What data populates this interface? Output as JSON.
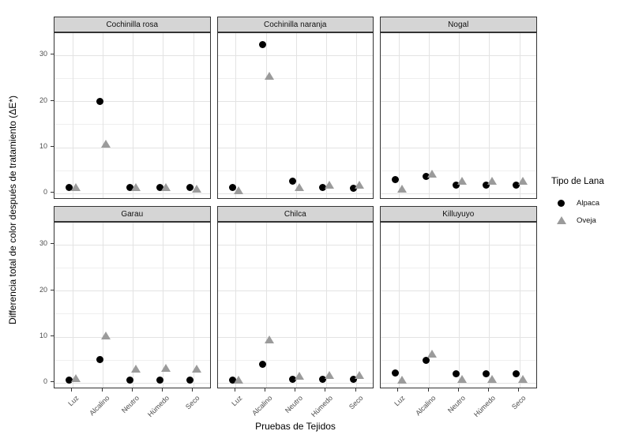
{
  "figure": {
    "y_axis_title": "Differencia total de color después de tratamiento (ΔE*)",
    "x_axis_title": "Pruebas de Tejidos",
    "legend": {
      "title": "Tipo de Lana",
      "items": [
        {
          "label": "Alpaca",
          "shape": "circle",
          "color": "#000000"
        },
        {
          "label": "Oveja",
          "shape": "triangle",
          "color": "#9b9b9b"
        }
      ]
    },
    "colors": {
      "background": "#ffffff",
      "strip_fill": "#d5d5d5",
      "panel_border": "#333333",
      "grid_major": "#e3e3e3",
      "grid_minor": "#efefef",
      "tick_text": "#4d4d4d",
      "title_text": "#000000",
      "alpaca_point": "#000000",
      "oveja_point": "#9b9b9b"
    }
  },
  "chart_data": {
    "type": "scatter",
    "facet_layout": {
      "rows": 2,
      "cols": 3
    },
    "facet_titles": [
      "Cochinilla rosa",
      "Cochinilla naranja",
      "Nogal",
      "Garau",
      "Chilca",
      "Killuyuyo"
    ],
    "categories": [
      "Luz",
      "Alcalino",
      "Neutro",
      "Húmedo",
      "Seco"
    ],
    "xlabel": "Pruebas de Tejidos",
    "ylabel": "Differencia total de color después de tratamiento (ΔE*)",
    "y_ticks": [
      0,
      10,
      20,
      30
    ],
    "y_minor_gridlines": [
      5,
      15,
      25
    ],
    "ylim": [
      -1.4,
      34.8
    ],
    "grid": true,
    "legend_position": "right",
    "legend_title": "Tipo de Lana",
    "series_names": [
      "Alpaca",
      "Oveja"
    ],
    "facets": [
      {
        "title": "Cochinilla rosa",
        "series": [
          {
            "name": "Alpaca",
            "values": [
              1.3,
              19.9,
              1.3,
              1.3,
              1.2
            ]
          },
          {
            "name": "Oveja",
            "values": [
              1.3,
              10.7,
              1.2,
              1.2,
              1.0
            ]
          }
        ]
      },
      {
        "title": "Cochinilla naranja",
        "series": [
          {
            "name": "Alpaca",
            "values": [
              1.2,
              32.3,
              2.7,
              1.2,
              1.1
            ]
          },
          {
            "name": "Oveja",
            "values": [
              0.5,
              25.5,
              1.3,
              1.8,
              1.8
            ]
          }
        ]
      },
      {
        "title": "Nogal",
        "series": [
          {
            "name": "Alpaca",
            "values": [
              2.9,
              3.7,
              1.8,
              1.8,
              1.8
            ]
          },
          {
            "name": "Oveja",
            "values": [
              0.9,
              4.1,
              2.6,
              2.7,
              2.6
            ]
          }
        ]
      },
      {
        "title": "Garau",
        "series": [
          {
            "name": "Alpaca",
            "values": [
              0.6,
              5.0,
              0.5,
              0.5,
              0.5
            ]
          },
          {
            "name": "Oveja",
            "values": [
              1.0,
              10.1,
              3.0,
              3.1,
              3.0
            ]
          }
        ]
      },
      {
        "title": "Chilca",
        "series": [
          {
            "name": "Alpaca",
            "values": [
              0.6,
              4.0,
              0.8,
              0.8,
              0.8
            ]
          },
          {
            "name": "Oveja",
            "values": [
              0.5,
              9.3,
              1.5,
              1.6,
              1.6
            ]
          }
        ]
      },
      {
        "title": "Killuyuyo",
        "series": [
          {
            "name": "Alpaca",
            "values": [
              2.2,
              4.9,
              1.9,
              1.9,
              1.9
            ]
          },
          {
            "name": "Oveja",
            "values": [
              0.5,
              6.2,
              0.7,
              0.7,
              0.7
            ]
          }
        ]
      }
    ]
  }
}
